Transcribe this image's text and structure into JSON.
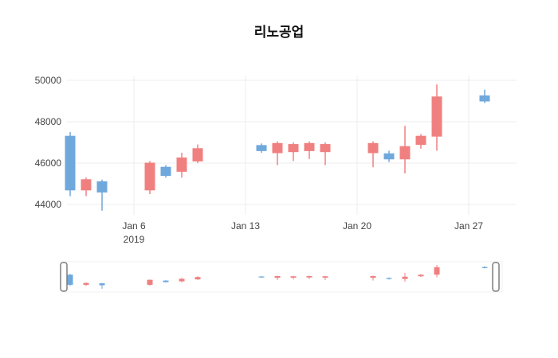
{
  "title": "리노공업",
  "chart_data": {
    "type": "candlestick",
    "title": "리노공업",
    "background_color": "#ffffff",
    "grid_color": "#ededf0",
    "increasing_color": "#f08080",
    "decreasing_color": "#6fa8dc",
    "axis_label_color": "#444444",
    "ylim": [
      43500,
      50230
    ],
    "xlim_days": [
      1.8,
      30
    ],
    "y_ticks": [
      44000,
      46000,
      48000,
      50000
    ],
    "x_ticks": [
      {
        "label": "Jan 6",
        "year": "2019",
        "day": 6
      },
      {
        "label": "Jan 13",
        "year": "",
        "day": 13
      },
      {
        "label": "Jan 20",
        "year": "",
        "day": 20
      },
      {
        "label": "Jan 27",
        "year": "",
        "day": 27
      }
    ],
    "rangeslider": true,
    "candles": [
      {
        "date": "2019-01-02",
        "day": 2,
        "open": 47300,
        "high": 47500,
        "low": 44400,
        "close": 44700
      },
      {
        "date": "2019-01-03",
        "day": 3,
        "open": 44700,
        "high": 45300,
        "low": 44400,
        "close": 45200
      },
      {
        "date": "2019-01-04",
        "day": 4,
        "open": 45100,
        "high": 45200,
        "low": 43700,
        "close": 44600
      },
      {
        "date": "2019-01-07",
        "day": 7,
        "open": 44700,
        "high": 46100,
        "low": 44500,
        "close": 46000
      },
      {
        "date": "2019-01-08",
        "day": 8,
        "open": 45800,
        "high": 45900,
        "low": 45300,
        "close": 45400
      },
      {
        "date": "2019-01-09",
        "day": 9,
        "open": 45600,
        "high": 46500,
        "low": 45300,
        "close": 46250
      },
      {
        "date": "2019-01-10",
        "day": 10,
        "open": 46100,
        "high": 46900,
        "low": 46000,
        "close": 46700
      },
      {
        "date": "2019-01-14",
        "day": 14,
        "open": 46850,
        "high": 46950,
        "low": 46500,
        "close": 46600
      },
      {
        "date": "2019-01-15",
        "day": 15,
        "open": 46500,
        "high": 47050,
        "low": 45900,
        "close": 46950
      },
      {
        "date": "2019-01-16",
        "day": 16,
        "open": 46550,
        "high": 47000,
        "low": 46100,
        "close": 46900
      },
      {
        "date": "2019-01-17",
        "day": 17,
        "open": 46600,
        "high": 47050,
        "low": 46200,
        "close": 46950
      },
      {
        "date": "2019-01-18",
        "day": 18,
        "open": 46550,
        "high": 47000,
        "low": 45900,
        "close": 46900
      },
      {
        "date": "2019-01-21",
        "day": 21,
        "open": 46500,
        "high": 47050,
        "low": 45800,
        "close": 46950
      },
      {
        "date": "2019-01-22",
        "day": 22,
        "open": 46450,
        "high": 46600,
        "low": 46050,
        "close": 46200
      },
      {
        "date": "2019-01-23",
        "day": 23,
        "open": 46200,
        "high": 47800,
        "low": 45500,
        "close": 46800
      },
      {
        "date": "2019-01-24",
        "day": 24,
        "open": 46900,
        "high": 47400,
        "low": 46700,
        "close": 47300
      },
      {
        "date": "2019-01-25",
        "day": 25,
        "open": 47300,
        "high": 49800,
        "low": 46600,
        "close": 49200
      },
      {
        "date": "2019-01-28",
        "day": 28,
        "open": 49250,
        "high": 49550,
        "low": 48900,
        "close": 49000
      }
    ]
  }
}
